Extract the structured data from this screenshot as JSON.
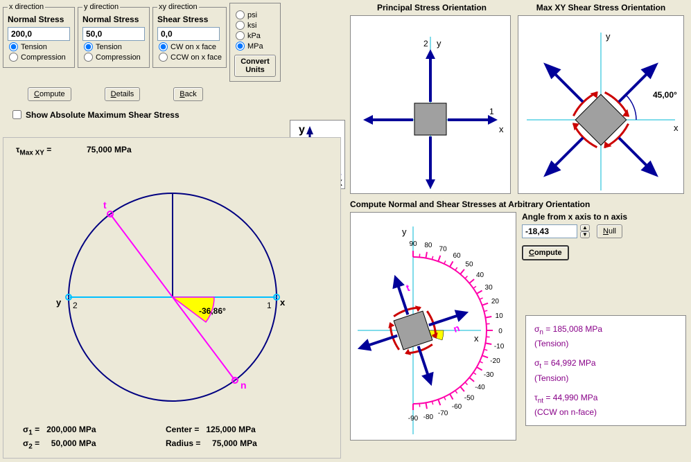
{
  "inputs": {
    "x": {
      "legend": "x direction",
      "label": "Normal Stress",
      "value": "200,0",
      "opt1": "Tension",
      "opt2": "Compression",
      "selected": 1
    },
    "y": {
      "legend": "y direction",
      "label": "Normal Stress",
      "value": "50,0",
      "opt1": "Tension",
      "opt2": "Compression",
      "selected": 1
    },
    "xy": {
      "legend": "xy direction",
      "label": "Shear Stress",
      "value": "0,0",
      "opt1": "CW on x face",
      "opt2": "CCW on x face",
      "selected": 1
    }
  },
  "units": {
    "options": [
      "psi",
      "ksi",
      "kPa",
      "MPa"
    ],
    "selected": "MPa",
    "convert_label": "Convert Units"
  },
  "buttons": {
    "compute": "Compute",
    "details": "Details",
    "back": "Back"
  },
  "checkbox": {
    "label": "Show Absolute Maximum Shear Stress",
    "checked": false
  },
  "mohr": {
    "tau_label": "τ",
    "tau_sub": "Max XY",
    "tau_eq": " =",
    "tau_value": "75,000 MPa",
    "angle_label": "-36,86°",
    "sigma1_label": "σ",
    "sigma1_sub": "1",
    "sigma1_val": "200,000 MPa",
    "sigma2_label": "σ",
    "sigma2_sub": "2",
    "sigma2_val": "50,000 MPa",
    "center_label": "Center =",
    "center_val": "125,000 MPa",
    "radius_label": "Radius =",
    "radius_val": "75,000 MPa",
    "x_label": "x",
    "y_label": "y",
    "t_label": "t",
    "n_label": "n",
    "p1": "1",
    "p2": "2",
    "circle_color": "#000080",
    "diameter_color": "#ff00ff",
    "xy_axis_color": "#00bfff",
    "angle_fill": "#ffff00"
  },
  "mini_ref": {
    "x": "x",
    "y": "y",
    "square_fill": "#a0a0a0",
    "arrow_color": "#000080"
  },
  "principal": {
    "title": "Principal Stress Orientation",
    "labels": {
      "x": "x",
      "y": "y",
      "p1": "1",
      "p2": "2"
    },
    "arrow_color": "#000099",
    "axis_color": "#00b8d4",
    "square_fill": "#a0a0a0"
  },
  "shear": {
    "title": "Max XY Shear Stress Orientation",
    "angle_label": "45,00°",
    "labels": {
      "x": "x",
      "y": "y"
    },
    "arrow_color": "#000099",
    "shear_arrow_color": "#cc0000",
    "axis_color": "#00b8d4",
    "square_fill": "#a0a0a0"
  },
  "arbitrary": {
    "title": "Compute Normal and Shear Stresses at Arbitrary Orientation",
    "angle_label": "Angle from x axis to n axis",
    "angle_value": "-18,43",
    "null_btn": "Null",
    "compute_btn": "Compute",
    "protractor": {
      "ticks": [
        "90",
        "80",
        "70",
        "60",
        "50",
        "40",
        "30",
        "20",
        "10",
        "0",
        "-10",
        "-20",
        "-30",
        "-40",
        "-50",
        "-60",
        "-70",
        "-80",
        "-90"
      ],
      "color": "#ff00aa"
    },
    "labels": {
      "x": "x",
      "y": "y",
      "n": "n",
      "t": "t"
    },
    "angle_fill": "#ffff00",
    "arrow_color": "#000099",
    "shear_arrow_color": "#cc0000",
    "axis_color": "#00b8d4",
    "square_fill": "#a0a0a0"
  },
  "results": {
    "sigma_n": "σ",
    "sigma_n_sub": "n",
    "sigma_n_val": " = 185,008 MPa",
    "sigma_n_note": "(Tension)",
    "sigma_t": "σ",
    "sigma_t_sub": "t",
    "sigma_t_val": " = 64,992 MPa",
    "sigma_t_note": "(Tension)",
    "tau_nt": "τ",
    "tau_nt_sub": "nt",
    "tau_nt_val": " = 44,990 MPa",
    "tau_nt_note": "(CCW on n-face)"
  }
}
